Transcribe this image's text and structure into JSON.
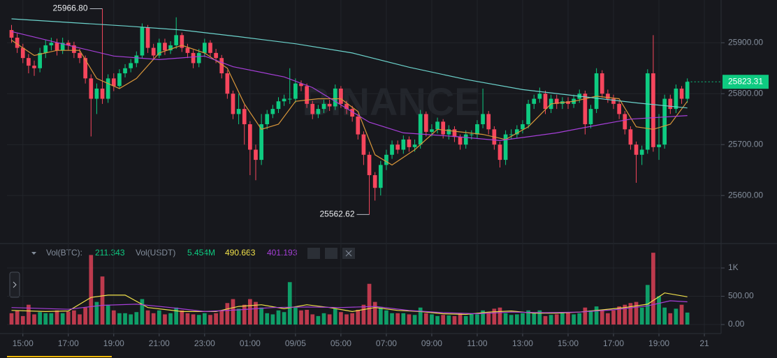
{
  "chart_data": {
    "type": "candlestick",
    "watermark": "BINANCE",
    "up_color": "#0ecb81",
    "down_color": "#f6465d",
    "grid": true,
    "xlim": [
      -0.8,
      124.7
    ],
    "xticks": [
      {
        "value": 2,
        "label": "15:00"
      },
      {
        "value": 10,
        "label": "17:00"
      },
      {
        "value": 18,
        "label": "19:00"
      },
      {
        "value": 26,
        "label": "21:00"
      },
      {
        "value": 34,
        "label": "23:00"
      },
      {
        "value": 42,
        "label": "01:00"
      },
      {
        "value": 50,
        "label": "09/05"
      },
      {
        "value": 58,
        "label": "05:00"
      },
      {
        "value": 66,
        "label": "07:00"
      },
      {
        "value": 74,
        "label": "09:00"
      },
      {
        "value": 82,
        "label": "11:00"
      },
      {
        "value": 90,
        "label": "13:00"
      },
      {
        "value": 98,
        "label": "15:00"
      },
      {
        "value": 106,
        "label": "17:00"
      },
      {
        "value": 114,
        "label": "19:00"
      },
      {
        "value": 122,
        "label": "21"
      }
    ],
    "ylim": [
      25507,
      25984
    ],
    "yticks": [
      {
        "value": 25600,
        "label": "25600.00"
      },
      {
        "value": 25700,
        "label": "25700.00"
      },
      {
        "value": 25800,
        "label": "25800.00"
      },
      {
        "value": 25900,
        "label": "25900.00"
      }
    ],
    "annotations": [
      {
        "value": 25966.8,
        "label": "25966.80",
        "x": 16
      },
      {
        "value": 25562.62,
        "label": "25562.62",
        "x": 63
      }
    ],
    "open": [
      25925,
      25910,
      25890,
      25870,
      25855,
      25850,
      25880,
      25895,
      25900,
      25885,
      25900,
      25895,
      25880,
      25870,
      25830,
      25790,
      25810,
      25790,
      25830,
      25815,
      25840,
      25850,
      25860,
      25875,
      25930,
      25890,
      25875,
      25900,
      25885,
      25895,
      25915,
      25890,
      25880,
      25860,
      25880,
      25900,
      25880,
      25870,
      25840,
      25800,
      25760,
      25770,
      25740,
      25690,
      25670,
      25740,
      25760,
      25770,
      25785,
      25790,
      25790,
      25820,
      25815,
      25780,
      25760,
      25770,
      25780,
      25775,
      25810,
      25780,
      25770,
      25755,
      25720,
      25680,
      25640,
      25615,
      25660,
      25680,
      25700,
      25690,
      25710,
      25695,
      25700,
      25760,
      25725,
      25730,
      25745,
      25720,
      25730,
      25715,
      25700,
      25720,
      25720,
      25740,
      25760,
      25730,
      25700,
      25670,
      25720,
      25720,
      25730,
      25740,
      25780,
      25790,
      25800,
      25770,
      25790,
      25780,
      25785,
      25780,
      25790,
      25800,
      25740,
      25770,
      25840,
      25800,
      25790,
      25780,
      25760,
      25730,
      25700,
      25680,
      25690,
      25840,
      25695,
      25700,
      25790,
      25770,
      25810,
      25790
    ],
    "high": [
      25935,
      25918,
      25898,
      25878,
      25865,
      25890,
      25905,
      25910,
      25908,
      25910,
      25905,
      25902,
      25888,
      25875,
      25838,
      25820,
      25966.8,
      25838,
      25840,
      25848,
      25858,
      25868,
      25883,
      25938,
      25935,
      25898,
      25908,
      25908,
      25903,
      25950,
      25920,
      25898,
      25886,
      25888,
      25908,
      25905,
      25888,
      25876,
      25846,
      25806,
      25800,
      25778,
      25746,
      25700,
      25760,
      25768,
      25778,
      25793,
      25798,
      25850,
      25830,
      25826,
      25820,
      25786,
      25778,
      25788,
      25788,
      25818,
      25815,
      25786,
      25776,
      25760,
      25726,
      25686,
      25646,
      25668,
      25690,
      25708,
      25708,
      25718,
      25716,
      25710,
      25768,
      25765,
      25740,
      25753,
      25750,
      25738,
      25736,
      25720,
      25728,
      25728,
      25748,
      25810,
      25766,
      25736,
      25706,
      25728,
      25730,
      25738,
      25748,
      25788,
      25798,
      25812,
      25806,
      25798,
      25798,
      25793,
      25793,
      25798,
      25808,
      25806,
      25778,
      25850,
      25846,
      25808,
      25798,
      25786,
      25766,
      25736,
      25706,
      25698,
      25848,
      25915,
      25760,
      25798,
      25798,
      25818,
      25815,
      25830
    ],
    "low": [
      25900,
      25880,
      25860,
      25840,
      25835,
      25842,
      25870,
      25885,
      25875,
      25878,
      25885,
      25870,
      25860,
      25820,
      25716,
      25760,
      25780,
      25782,
      25805,
      25810,
      25832,
      25842,
      25852,
      25870,
      25880,
      25866,
      25870,
      25876,
      25878,
      25888,
      25882,
      25870,
      25850,
      25852,
      25872,
      25872,
      25860,
      25830,
      25790,
      25750,
      25740,
      25700,
      25640,
      25630,
      25660,
      25730,
      25752,
      25762,
      25776,
      25780,
      25782,
      25805,
      25772,
      25750,
      25752,
      25762,
      25766,
      25768,
      25772,
      25760,
      25745,
      25710,
      25660,
      25562.62,
      25590,
      25600,
      25650,
      25672,
      25682,
      25682,
      25686,
      25686,
      25692,
      25716,
      25716,
      25722,
      25712,
      25710,
      25705,
      25690,
      25692,
      25710,
      25712,
      25732,
      25720,
      25690,
      25655,
      25660,
      25710,
      25712,
      25722,
      25732,
      25770,
      25782,
      25760,
      25762,
      25770,
      25770,
      25770,
      25772,
      25782,
      25720,
      25732,
      25762,
      25792,
      25782,
      25770,
      25750,
      25720,
      25690,
      25625,
      25660,
      25682,
      25686,
      25670,
      25692,
      25760,
      25762,
      25780,
      25782
    ],
    "close": [
      25910,
      25890,
      25870,
      25855,
      25850,
      25880,
      25895,
      25900,
      25885,
      25900,
      25895,
      25880,
      25870,
      25830,
      25790,
      25810,
      25790,
      25830,
      25815,
      25840,
      25850,
      25860,
      25875,
      25930,
      25890,
      25875,
      25900,
      25885,
      25895,
      25915,
      25890,
      25880,
      25860,
      25880,
      25900,
      25880,
      25870,
      25840,
      25800,
      25760,
      25770,
      25740,
      25690,
      25670,
      25740,
      25760,
      25770,
      25785,
      25790,
      25790,
      25820,
      25815,
      25780,
      25760,
      25770,
      25780,
      25775,
      25810,
      25780,
      25770,
      25755,
      25720,
      25680,
      25640,
      25615,
      25660,
      25680,
      25700,
      25690,
      25710,
      25695,
      25700,
      25760,
      25725,
      25730,
      25745,
      25720,
      25730,
      25715,
      25700,
      25720,
      25720,
      25740,
      25760,
      25730,
      25700,
      25670,
      25720,
      25720,
      25730,
      25740,
      25780,
      25790,
      25800,
      25770,
      25790,
      25780,
      25785,
      25780,
      25790,
      25800,
      25740,
      25770,
      25840,
      25800,
      25790,
      25780,
      25760,
      25730,
      25700,
      25680,
      25690,
      25840,
      25695,
      25700,
      25790,
      25770,
      25810,
      25790,
      25823.31
    ],
    "ma_lines": [
      {
        "color": "#d8963a",
        "x": [
          0,
          4,
          8,
          12,
          15,
          19,
          22,
          26,
          30,
          34,
          38,
          41,
          44,
          47,
          50,
          54,
          58,
          61,
          64,
          67,
          71,
          75,
          79,
          83,
          87,
          91,
          95,
          99,
          103,
          107,
          110,
          113,
          116,
          119
        ],
        "values": [
          25905,
          25875,
          25885,
          25885,
          25830,
          25810,
          25830,
          25880,
          25895,
          25880,
          25850,
          25780,
          25730,
          25740,
          25785,
          25790,
          25790,
          25765,
          25680,
          25660,
          25690,
          25730,
          25725,
          25720,
          25710,
          25735,
          25780,
          25785,
          25795,
          25790,
          25735,
          25730,
          25740,
          25785
        ]
      },
      {
        "color": "#a63fd8",
        "x": [
          0,
          10,
          18,
          26,
          34,
          39,
          48,
          53,
          63,
          69,
          78,
          86,
          96,
          104,
          109,
          119
        ],
        "values": [
          25922,
          25895,
          25874,
          25867,
          25874,
          25853,
          25833,
          25812,
          25744,
          25723,
          25716,
          25708,
          25723,
          25740,
          25750,
          25757
        ]
      },
      {
        "color": "#6cd3cc",
        "x": [
          0,
          10,
          20,
          30,
          40,
          50,
          60,
          70,
          80,
          90,
          100,
          110,
          119
        ],
        "values": [
          25947,
          25940,
          25933,
          25925,
          25912,
          25898,
          25880,
          25852,
          25828,
          25808,
          25795,
          25782,
          25772
        ]
      }
    ],
    "volume": {
      "label_btc": "Vol(BTC):",
      "label_usdt": "Vol(USDT)",
      "usdt_value": "5.454M",
      "ylim": [
        -160,
        1420
      ],
      "yticks": [
        {
          "value": 0,
          "label": "0.00"
        },
        {
          "value": 500,
          "label": "500.00"
        },
        {
          "value": 1000,
          "label": "1K"
        }
      ],
      "values": [
        200,
        250,
        150,
        350,
        180,
        220,
        200,
        200,
        250,
        200,
        230,
        250,
        180,
        300,
        1230,
        400,
        850,
        350,
        250,
        200,
        200,
        180,
        220,
        450,
        250,
        200,
        250,
        180,
        200,
        300,
        250,
        200,
        180,
        170,
        200,
        170,
        200,
        250,
        380,
        450,
        280,
        350,
        450,
        400,
        300,
        200,
        180,
        250,
        220,
        750,
        300,
        250,
        260,
        180,
        150,
        200,
        180,
        280,
        220,
        180,
        200,
        260,
        350,
        720,
        400,
        300,
        250,
        200,
        200,
        200,
        180,
        170,
        300,
        200,
        180,
        150,
        170,
        160,
        150,
        200,
        150,
        200,
        180,
        250,
        220,
        280,
        300,
        200,
        170,
        180,
        200,
        250,
        200,
        250,
        150,
        170,
        180,
        200,
        220,
        180,
        200,
        300,
        250,
        320,
        250,
        200,
        250,
        320,
        350,
        380,
        400,
        300,
        700,
        1270,
        500,
        300,
        200,
        280,
        350,
        211.343
      ],
      "ma": [
        {
          "color": "#f0e04a",
          "x": [
            0,
            6,
            10,
            14,
            17,
            20,
            24,
            30,
            36,
            40,
            44,
            48,
            52,
            56,
            60,
            64,
            68,
            72,
            76,
            80,
            84,
            88,
            92,
            96,
            100,
            104,
            108,
            112,
            115,
            119
          ],
          "values": [
            250,
            230,
            240,
            480,
            520,
            520,
            300,
            230,
            230,
            320,
            350,
            280,
            350,
            300,
            230,
            300,
            250,
            230,
            190,
            180,
            220,
            240,
            200,
            200,
            220,
            260,
            300,
            360,
            560,
            490.663
          ]
        },
        {
          "color": "#a63fd8",
          "x": [
            0,
            10,
            16,
            22,
            28,
            34,
            40,
            46,
            52,
            58,
            64,
            70,
            76,
            82,
            88,
            94,
            100,
            106,
            112,
            116,
            119
          ],
          "values": [
            300,
            270,
            340,
            360,
            300,
            230,
            260,
            300,
            310,
            300,
            320,
            250,
            210,
            190,
            220,
            210,
            220,
            260,
            330,
            420,
            401.193
          ]
        }
      ]
    }
  }
}
